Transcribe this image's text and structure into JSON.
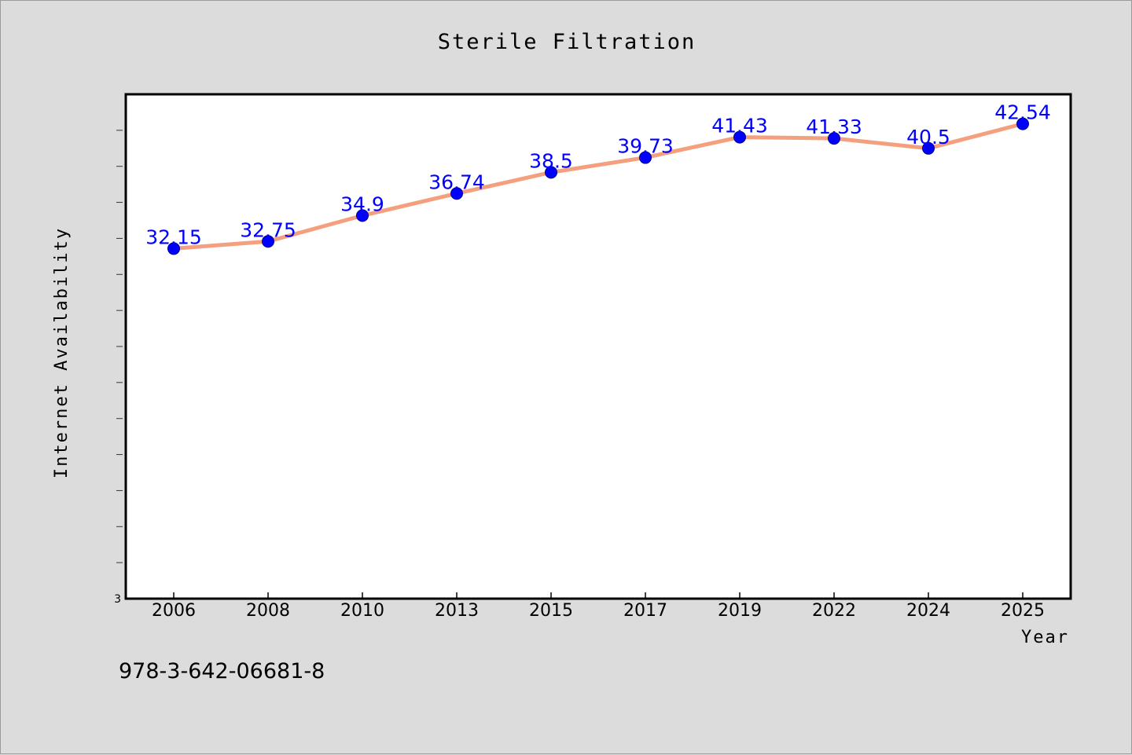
{
  "chart_data": {
    "type": "line",
    "title": "Sterile Filtration",
    "xlabel": "Year",
    "ylabel": "Internet Availability",
    "categories": [
      "2006",
      "2008",
      "2010",
      "2013",
      "2015",
      "2017",
      "2019",
      "2022",
      "2024",
      "2025"
    ],
    "series": [
      {
        "values": [
          32.15,
          32.75,
          34.9,
          36.74,
          38.5,
          39.73,
          41.43,
          41.33,
          40.5,
          42.54
        ],
        "labels": [
          "32.15",
          "32.75",
          "34.9",
          "36.74",
          "38.5",
          "39.73",
          "41.43",
          "41.33",
          "40.5",
          "42.54"
        ]
      }
    ],
    "ylim": [
      3,
      45
    ],
    "y_tick_labels": [
      "3"
    ],
    "grid": false,
    "colors": {
      "line": "#f4a07f",
      "marker": "#0000ff",
      "data_label": "#0000ff",
      "background": "#dcdcdc",
      "plot_area": "#ffffff"
    }
  },
  "footnote": "978-3-642-06681-8"
}
